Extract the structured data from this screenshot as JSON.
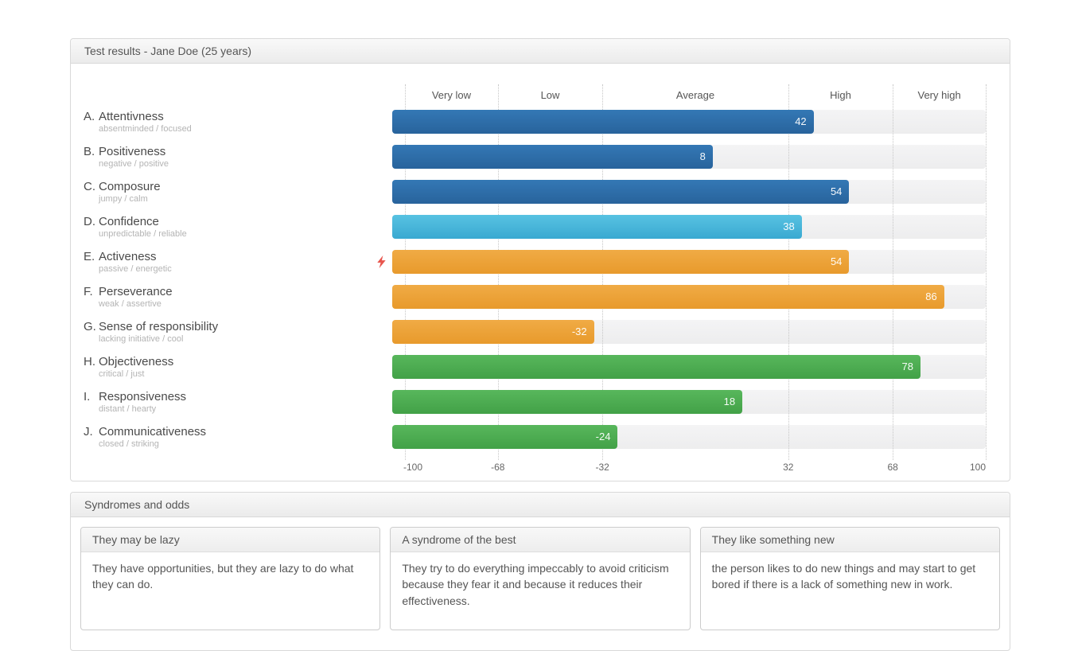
{
  "results_panel": {
    "title": "Test results - Jane Doe (25 years)",
    "chart": {
      "axis_min": -100,
      "axis_max": 100,
      "zone_labels": [
        "Very low",
        "Low",
        "Average",
        "High",
        "Very high"
      ],
      "boundaries": [
        -100,
        -68,
        -32,
        32,
        68,
        100
      ],
      "tick_labels": [
        "-100",
        "-68",
        "-32",
        "32",
        "68",
        "100"
      ],
      "rows": [
        {
          "prefix": "A.",
          "name": "Attentivness",
          "subtitle": "absentminded / focused",
          "value": 42,
          "color": "blue",
          "flag": false
        },
        {
          "prefix": "B.",
          "name": "Positiveness",
          "subtitle": "negative / positive",
          "value": 8,
          "color": "blue",
          "flag": false
        },
        {
          "prefix": "C.",
          "name": "Composure",
          "subtitle": "jumpy / calm",
          "value": 54,
          "color": "blue",
          "flag": false
        },
        {
          "prefix": "D.",
          "name": "Confidence",
          "subtitle": "unpredictable / reliable",
          "value": 38,
          "color": "lightblue",
          "flag": false
        },
        {
          "prefix": "E.",
          "name": "Activeness",
          "subtitle": "passive / energetic",
          "value": 54,
          "color": "orange",
          "flag": true
        },
        {
          "prefix": "F.",
          "name": "Perseverance",
          "subtitle": "weak / assertive",
          "value": 86,
          "color": "orange",
          "flag": false
        },
        {
          "prefix": "G.",
          "name": "Sense of responsibility",
          "subtitle": "lacking initiative / cool",
          "value": -32,
          "color": "orange",
          "flag": false
        },
        {
          "prefix": "H.",
          "name": "Objectiveness",
          "subtitle": "critical / just",
          "value": 78,
          "color": "green",
          "flag": false
        },
        {
          "prefix": "I.",
          "name": "Responsiveness",
          "subtitle": "distant / hearty",
          "value": 18,
          "color": "green",
          "flag": false
        },
        {
          "prefix": "J.",
          "name": "Communicativeness",
          "subtitle": "closed / striking",
          "value": -24,
          "color": "green",
          "flag": false
        }
      ]
    }
  },
  "syndromes_panel": {
    "title": "Syndromes and odds",
    "cards": [
      {
        "title": "They may be lazy",
        "text": "They have opportunities, but they are lazy to do what they can do."
      },
      {
        "title": "A syndrome of the best",
        "text": "They try to do everything impeccably to avoid criticism because they fear it and because it reduces their effectiveness."
      },
      {
        "title": "They like something new",
        "text": "the person likes to do new things and may start to get bored if there is a lack of something new in work."
      }
    ]
  },
  "colors": {
    "bar_blue": "#2e6da8",
    "bar_lightblue": "#47b6dc",
    "bar_orange": "#eea33c",
    "bar_green": "#4cae51",
    "flag_red": "#e8554d",
    "track_gray": "#f1f1f2",
    "panel_border": "#d9d9d9"
  },
  "chart_data": {
    "type": "bar",
    "orientation": "horizontal",
    "title": "Test results - Jane Doe (25 years)",
    "categories": [
      "A. Attentivness",
      "B. Positiveness",
      "C. Composure",
      "D. Confidence",
      "E. Activeness",
      "F. Perseverance",
      "G. Sense of responsibility",
      "H. Objectiveness",
      "I. Responsiveness",
      "J. Communicativeness"
    ],
    "category_subtitles": [
      "absentminded / focused",
      "negative / positive",
      "jumpy / calm",
      "unpredictable / reliable",
      "passive / energetic",
      "weak / assertive",
      "lacking initiative / cool",
      "critical / just",
      "distant / hearty",
      "closed / striking"
    ],
    "values": [
      42,
      8,
      54,
      38,
      54,
      86,
      -32,
      78,
      18,
      -24
    ],
    "xlim": [
      -100,
      100
    ],
    "x_ticks": [
      -100,
      -68,
      -32,
      32,
      68,
      100
    ],
    "zone_labels": [
      "Very low",
      "Low",
      "Average",
      "High",
      "Very high"
    ],
    "grid": "dotted-vertical",
    "legend": "none"
  }
}
